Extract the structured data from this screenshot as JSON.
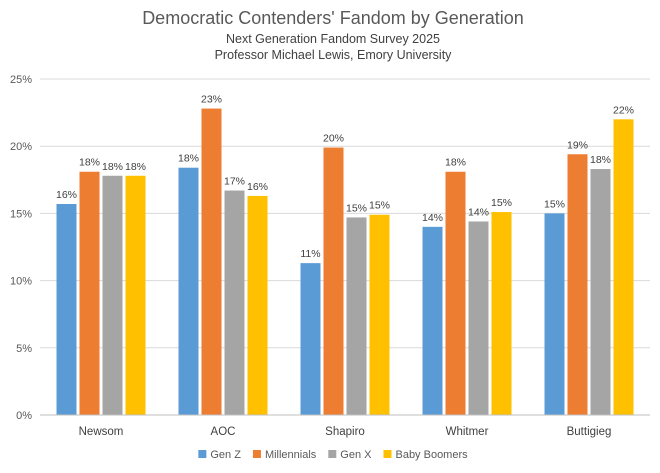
{
  "chart_data": {
    "type": "bar",
    "title": "Democratic Contenders' Fandom by Generation",
    "subtitles": [
      "Next Generation Fandom Survey 2025",
      "Professor Michael Lewis, Emory University"
    ],
    "categories": [
      "Newsom",
      "AOC",
      "Shapiro",
      "Whitmer",
      "Buttigieg"
    ],
    "series": [
      {
        "name": "Gen Z",
        "color": "#5B9BD5",
        "values": [
          15.7,
          18.4,
          11.3,
          14.0,
          15.0
        ],
        "labels": [
          "16%",
          "18%",
          "11%",
          "14%",
          "15%"
        ]
      },
      {
        "name": "Millennials",
        "color": "#ED7D31",
        "values": [
          18.1,
          22.8,
          19.9,
          18.1,
          19.4
        ],
        "labels": [
          "18%",
          "23%",
          "20%",
          "18%",
          "19%"
        ]
      },
      {
        "name": "Gen X",
        "color": "#A5A5A5",
        "values": [
          17.8,
          16.7,
          14.7,
          14.4,
          18.3
        ],
        "labels": [
          "18%",
          "17%",
          "15%",
          "14%",
          "18%"
        ]
      },
      {
        "name": "Baby Boomers",
        "color": "#FFC000",
        "values": [
          17.8,
          16.3,
          14.9,
          15.1,
          22.0
        ],
        "labels": [
          "18%",
          "16%",
          "15%",
          "15%",
          "22%"
        ]
      }
    ],
    "y_ticks": [
      "0%",
      "5%",
      "10%",
      "15%",
      "20%",
      "25%"
    ],
    "ylim": [
      0,
      25
    ],
    "grid": true,
    "legend_position": "bottom"
  }
}
